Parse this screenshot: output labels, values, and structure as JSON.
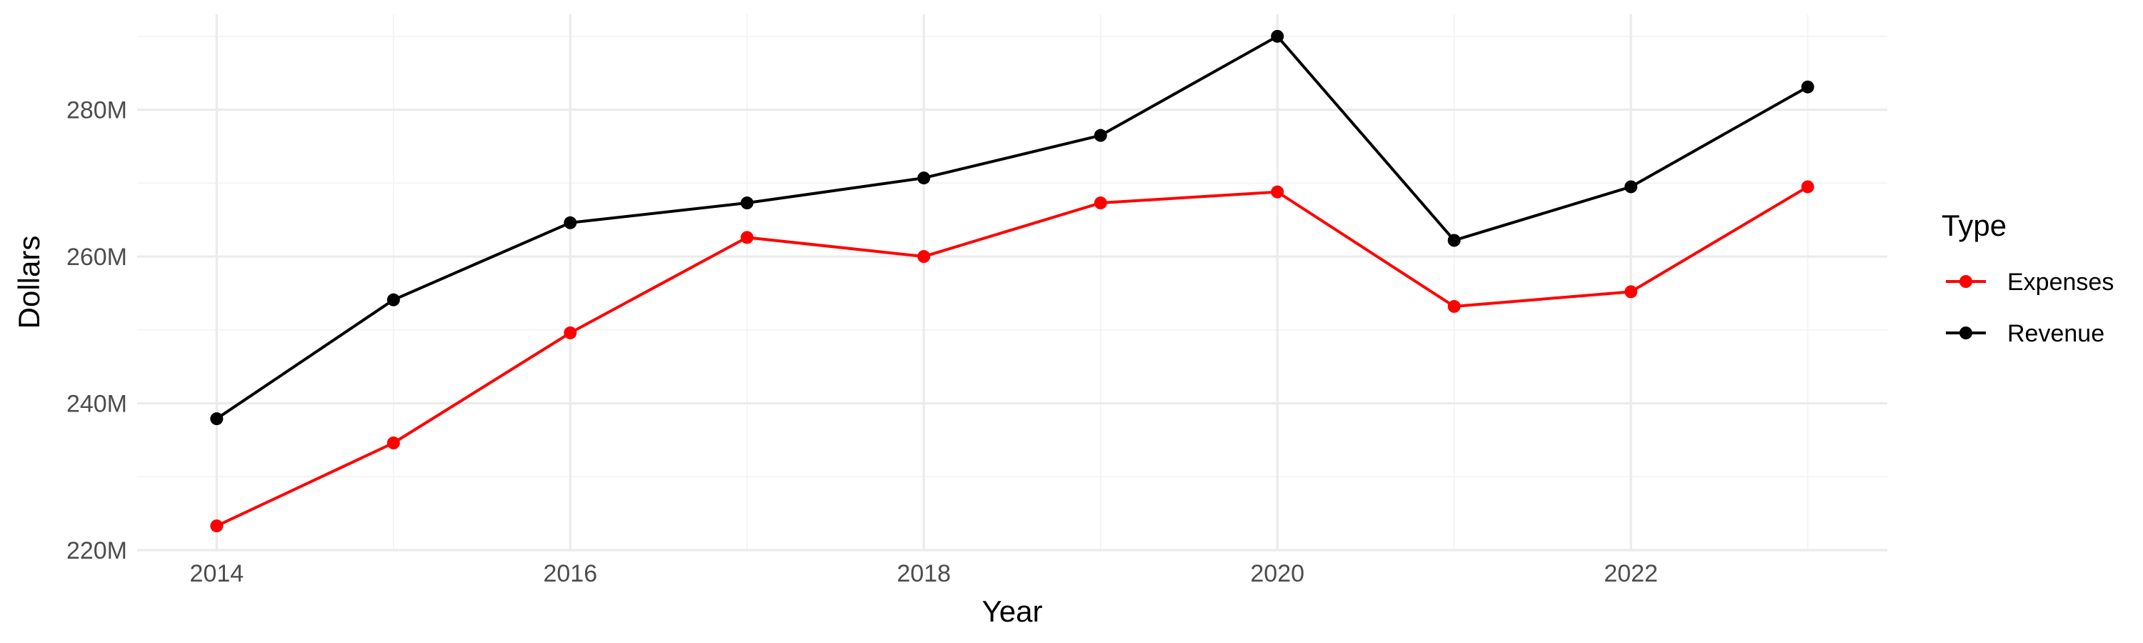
{
  "chart_data": {
    "type": "line",
    "x": [
      2014,
      2015,
      2016,
      2017,
      2018,
      2019,
      2020,
      2021,
      2022,
      2023
    ],
    "x_ticks": [
      2014,
      2016,
      2018,
      2020,
      2022
    ],
    "x_tick_labels": [
      "2014",
      "2016",
      "2018",
      "2020",
      "2022"
    ],
    "y_ticks": [
      220,
      240,
      260,
      280
    ],
    "y_tick_labels": [
      "220M",
      "240M",
      "260M",
      "280M"
    ],
    "xlabel": "Year",
    "ylabel": "Dollars",
    "xlim": [
      2013.55,
      2023.45
    ],
    "ylim": [
      220,
      293
    ],
    "y_unit": "millions of dollars",
    "grid": true,
    "legend": {
      "title": "Type",
      "position": "right"
    },
    "series": [
      {
        "name": "Expenses",
        "color": "#ff0000",
        "values": [
          223.3,
          234.6,
          249.6,
          262.6,
          260.0,
          267.3,
          268.8,
          253.2,
          255.2,
          269.5
        ]
      },
      {
        "name": "Revenue",
        "color": "#000000",
        "values": [
          237.9,
          254.1,
          264.6,
          267.3,
          270.7,
          276.5,
          290.0,
          262.2,
          269.5,
          283.1
        ]
      }
    ]
  }
}
